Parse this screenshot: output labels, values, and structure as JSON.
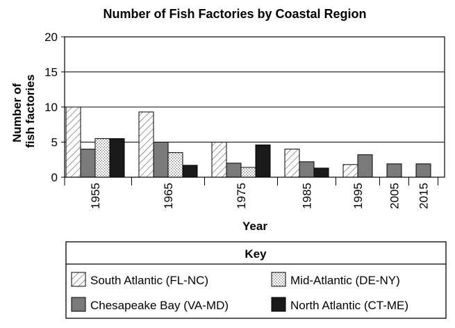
{
  "chart_data": {
    "type": "bar",
    "title": "Number of Fish Factories by Coastal Region",
    "xlabel": "Year",
    "ylabel": [
      "Number of",
      "fish factories"
    ],
    "ylim": [
      0,
      20
    ],
    "yticks": [
      0,
      5,
      10,
      15,
      20
    ],
    "grid": true,
    "categories": [
      "1955",
      "1965",
      "1975",
      "1985",
      "1995",
      "2005",
      "2015"
    ],
    "series": [
      {
        "name": "South Atlantic (FL-NC)",
        "pattern": "diagonal-hatch",
        "color": "#ffffff",
        "values": [
          10,
          9.3,
          5,
          4,
          1.8,
          null,
          null
        ]
      },
      {
        "name": "Chesapeake Bay (VA-MD)",
        "pattern": "solid",
        "color": "#7a7a7a",
        "values": [
          4,
          5,
          2,
          2.2,
          3.2,
          1.9,
          1.9
        ]
      },
      {
        "name": "Mid-Atlantic (DE-NY)",
        "pattern": "dotted",
        "color": "#ffffff",
        "values": [
          5.5,
          3.5,
          1.4,
          null,
          null,
          null,
          null
        ]
      },
      {
        "name": "North Atlantic (CT-ME)",
        "pattern": "solid",
        "color": "#1a1a1a",
        "values": [
          5.5,
          1.7,
          4.6,
          1.3,
          null,
          null,
          null
        ]
      }
    ],
    "legend": {
      "title": "Key",
      "placement": "bottom",
      "entries": [
        {
          "label": "South Atlantic (FL-NC)",
          "series": 0
        },
        {
          "label": "Mid-Atlantic (DE-NY)",
          "series": 2
        },
        {
          "label": "Chesapeake Bay (VA-MD)",
          "series": 1
        },
        {
          "label": "North Atlantic (CT-ME)",
          "series": 3
        }
      ]
    }
  }
}
